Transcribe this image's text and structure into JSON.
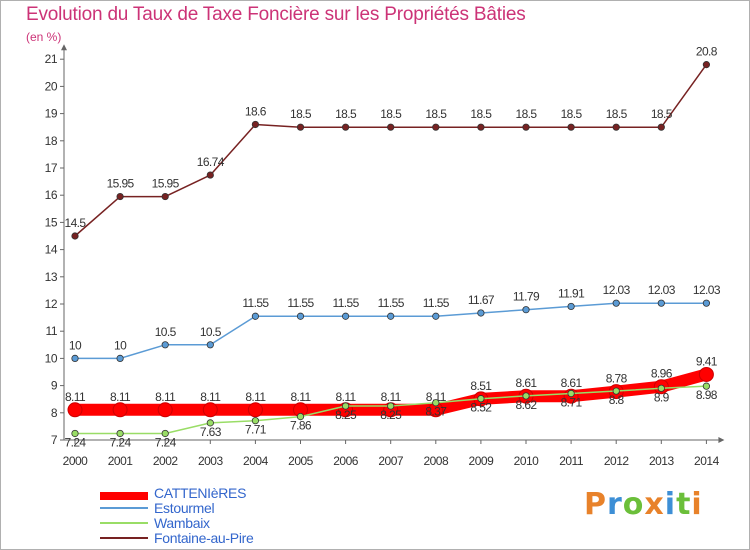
{
  "title": "Evolution du Taux de Taxe Foncière sur les Propriétés Bâties",
  "unit_label": "(en %)",
  "logo_text": "Proxiti",
  "chart_data": {
    "type": "line",
    "title": "Evolution du Taux de Taxe Foncière sur les Propriétés Bâties",
    "ylabel": "(en %)",
    "xlabel": "",
    "x": [
      "2000",
      "2001",
      "2002",
      "2003",
      "2004",
      "2005",
      "2006",
      "2007",
      "2008",
      "2009",
      "2010",
      "2011",
      "2012",
      "2013",
      "2014"
    ],
    "ylim": [
      7,
      21
    ],
    "yticks": [
      7,
      8,
      9,
      10,
      11,
      12,
      13,
      14,
      15,
      16,
      17,
      18,
      19,
      20,
      21
    ],
    "grid": false,
    "legend_position": "bottom-left",
    "series": [
      {
        "name": "CATTENIèRES",
        "color": "#ff0000",
        "values": [
          8.11,
          8.11,
          8.11,
          8.11,
          8.11,
          8.11,
          8.11,
          8.11,
          8.11,
          8.51,
          8.61,
          8.61,
          8.78,
          8.96,
          9.41
        ],
        "labels": [
          "8.11",
          "8.11",
          "8.11",
          "8.11",
          "8.11",
          "8.11",
          "8.11",
          "8.11",
          "8.11",
          "8.51",
          "8.61",
          "8.61",
          "8.78",
          "8.96",
          "9.41"
        ]
      },
      {
        "name": "Estourmel",
        "color": "#5b9bd5",
        "values": [
          10,
          10,
          10.5,
          10.5,
          11.55,
          11.55,
          11.55,
          11.55,
          11.55,
          11.67,
          11.79,
          11.91,
          12.03,
          12.03,
          12.03
        ],
        "labels": [
          "10",
          "10",
          "10.5",
          "10.5",
          "11.55",
          "11.55",
          "11.55",
          "11.55",
          "11.55",
          "11.67",
          "11.79",
          "11.91",
          "12.03",
          "12.03",
          "12.03"
        ]
      },
      {
        "name": "Wambaix",
        "color": "#99dd66",
        "values": [
          7.24,
          7.24,
          7.24,
          7.63,
          7.71,
          7.86,
          8.25,
          8.25,
          8.37,
          8.52,
          8.62,
          8.71,
          8.8,
          8.9,
          8.98
        ],
        "labels": [
          "7.24",
          "7.24",
          "7.24",
          "7.63",
          "7.71",
          "7.86",
          "8.25",
          "8.25",
          "8.37",
          "8.52",
          "8.62",
          "8.71",
          "8.8",
          "8.9",
          "8.98"
        ]
      },
      {
        "name": "Fontaine-au-Pire",
        "color": "#772222",
        "values": [
          14.5,
          15.95,
          15.95,
          16.74,
          18.6,
          18.5,
          18.5,
          18.5,
          18.5,
          18.5,
          18.5,
          18.5,
          18.5,
          18.5,
          20.8
        ],
        "labels": [
          "14.5",
          "15.95",
          "15.95",
          "16.74",
          "18.6",
          "18.5",
          "18.5",
          "18.5",
          "18.5",
          "18.5",
          "18.5",
          "18.5",
          "18.5",
          "18.5",
          "20.8"
        ]
      }
    ]
  }
}
